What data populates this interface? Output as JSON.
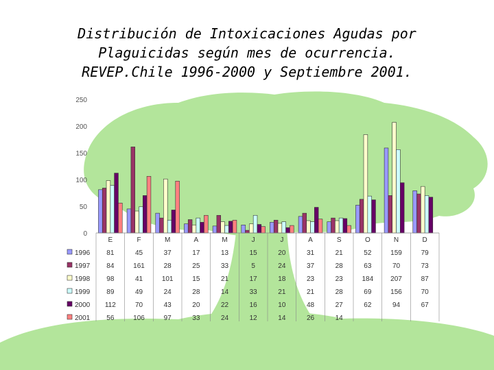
{
  "title_lines": [
    "Distribución de Intoxicaciones Agudas por",
    "Plaguicidas según mes de ocurrencia.",
    "REVEP.Chile 1996-2000 y Septiembre 2001."
  ],
  "colors": {
    "background_tree": "#b3e59b",
    "background_tree_dark": "#a8de8e"
  },
  "chart_data": {
    "type": "bar",
    "title": "Distribución de Intoxicaciones Agudas por Plaguicidas según mes de ocurrencia. REVEP.Chile 1996-2000 y Septiembre 2001.",
    "categories": [
      "E",
      "F",
      "M",
      "A",
      "M",
      "J",
      "J",
      "A",
      "S",
      "O",
      "N",
      "D"
    ],
    "ylim": [
      0,
      250
    ],
    "yticks": [
      0,
      50,
      100,
      150,
      200,
      250
    ],
    "grid": false,
    "legend": "data-table-below",
    "series": [
      {
        "name": "1996",
        "color": "#9999ff",
        "values": [
          81,
          45,
          37,
          17,
          13,
          15,
          20,
          31,
          21,
          52,
          159,
          79
        ]
      },
      {
        "name": "1997",
        "color": "#993366",
        "values": [
          84,
          161,
          28,
          25,
          33,
          5,
          24,
          37,
          28,
          63,
          70,
          73
        ]
      },
      {
        "name": "1998",
        "color": "#ffffcc",
        "values": [
          98,
          41,
          101,
          15,
          21,
          17,
          18,
          23,
          23,
          184,
          207,
          87
        ]
      },
      {
        "name": "1999",
        "color": "#ccffff",
        "values": [
          89,
          49,
          24,
          28,
          14,
          33,
          21,
          21,
          28,
          69,
          156,
          70
        ]
      },
      {
        "name": "2000",
        "color": "#660066",
        "values": [
          112,
          70,
          43,
          20,
          22,
          16,
          10,
          48,
          27,
          62,
          94,
          67
        ]
      },
      {
        "name": "2001",
        "color": "#ff8080",
        "values": [
          56,
          106,
          97,
          33,
          24,
          12,
          14,
          26,
          14,
          null,
          null,
          null
        ]
      }
    ]
  }
}
